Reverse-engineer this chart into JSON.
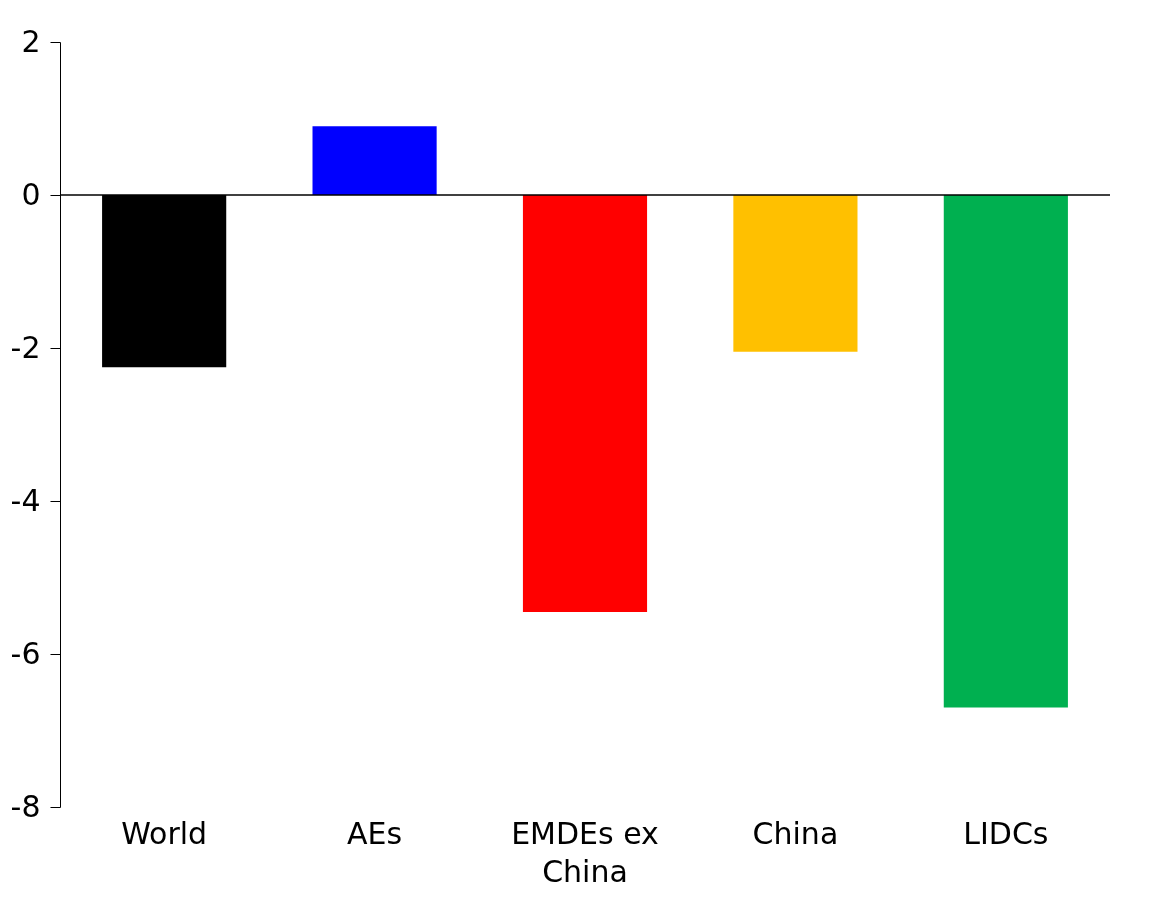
{
  "chart_data": {
    "type": "bar",
    "categories": [
      "World",
      "AEs",
      "EMDEs ex China",
      "China",
      "LIDCs"
    ],
    "values": [
      -2.25,
      0.9,
      -5.45,
      -2.05,
      -6.7
    ],
    "colors": [
      "#000000",
      "#0000ff",
      "#ff0000",
      "#ffc000",
      "#00b050"
    ],
    "ylim": [
      -8,
      2
    ],
    "yticks": [
      {
        "value": -8,
        "label": "-8"
      },
      {
        "value": -6,
        "label": "-6"
      },
      {
        "value": -4,
        "label": "-4"
      },
      {
        "value": -2,
        "label": "-2"
      },
      {
        "value": 0,
        "label": "0"
      },
      {
        "value": 2,
        "label": "2"
      }
    ]
  }
}
